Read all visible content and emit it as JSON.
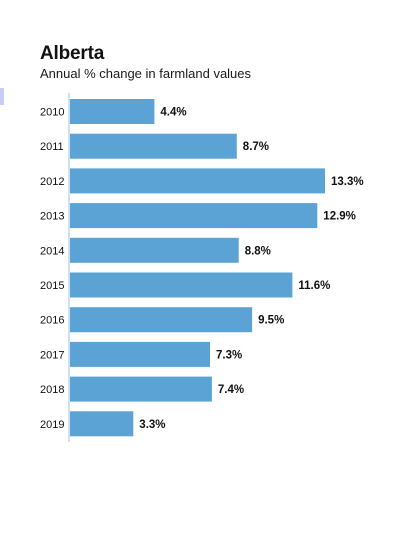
{
  "chart_data": {
    "type": "bar",
    "orientation": "horizontal",
    "title": "Alberta",
    "subtitle": "Annual % change in farmland values",
    "categories": [
      "2010",
      "2011",
      "2012",
      "2013",
      "2014",
      "2015",
      "2016",
      "2017",
      "2018",
      "2019"
    ],
    "values": [
      4.4,
      8.7,
      13.3,
      12.9,
      8.8,
      11.6,
      9.5,
      7.3,
      7.4,
      3.3
    ],
    "value_labels": [
      "4.4%",
      "8.7%",
      "13.3%",
      "12.9%",
      "8.8%",
      "11.6%",
      "9.5%",
      "7.3%",
      "7.4%",
      "3.3%"
    ],
    "xlim": [
      0,
      13.3
    ],
    "bar_color": "#5ba3d5",
    "axis_color": "#9ac6e6",
    "grid": false,
    "legend": "none"
  }
}
